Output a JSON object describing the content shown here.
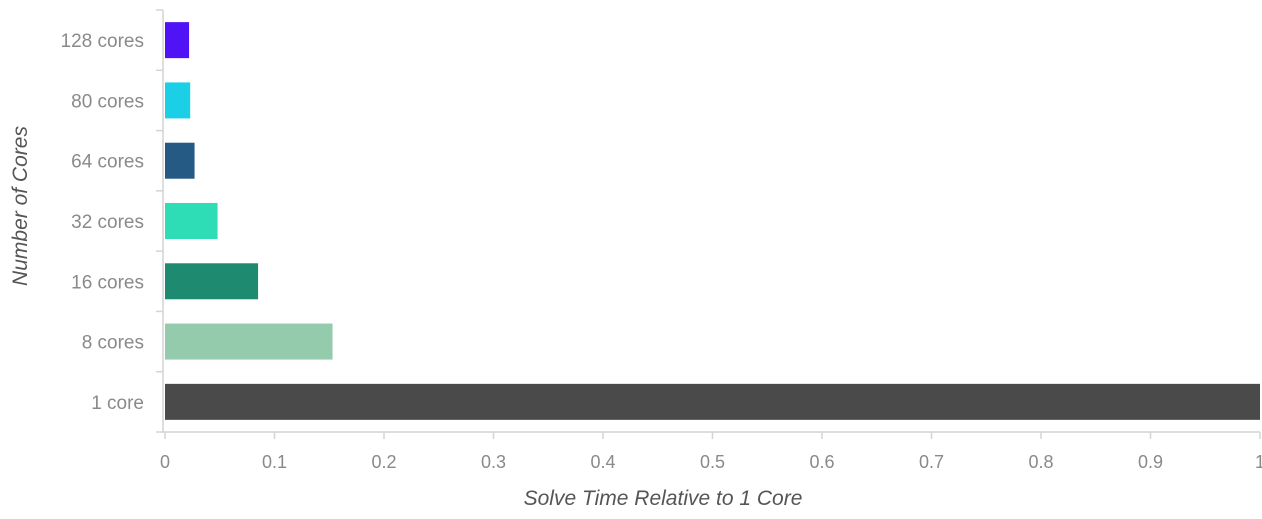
{
  "chart_data": {
    "type": "bar",
    "orientation": "horizontal",
    "xlabel": "Solve Time Relative to 1 Core",
    "ylabel": "Number of Cores",
    "xlim": [
      0,
      1
    ],
    "x_ticks": [
      "0",
      "0.1",
      "0.2",
      "0.3",
      "0.4",
      "0.5",
      "0.6",
      "0.7",
      "0.8",
      "0.9",
      "1"
    ],
    "grid": false,
    "categories": [
      "1 core",
      "8 cores",
      "16 cores",
      "32 cores",
      "64 cores",
      "80 cores",
      "128 cores"
    ],
    "values": [
      1.0,
      0.153,
      0.085,
      0.048,
      0.027,
      0.023,
      0.022
    ],
    "colors": [
      "#4a4a4a",
      "#95cbad",
      "#1e8a70",
      "#2edcb5",
      "#255a85",
      "#1bd0e6",
      "#4f13f5"
    ]
  }
}
